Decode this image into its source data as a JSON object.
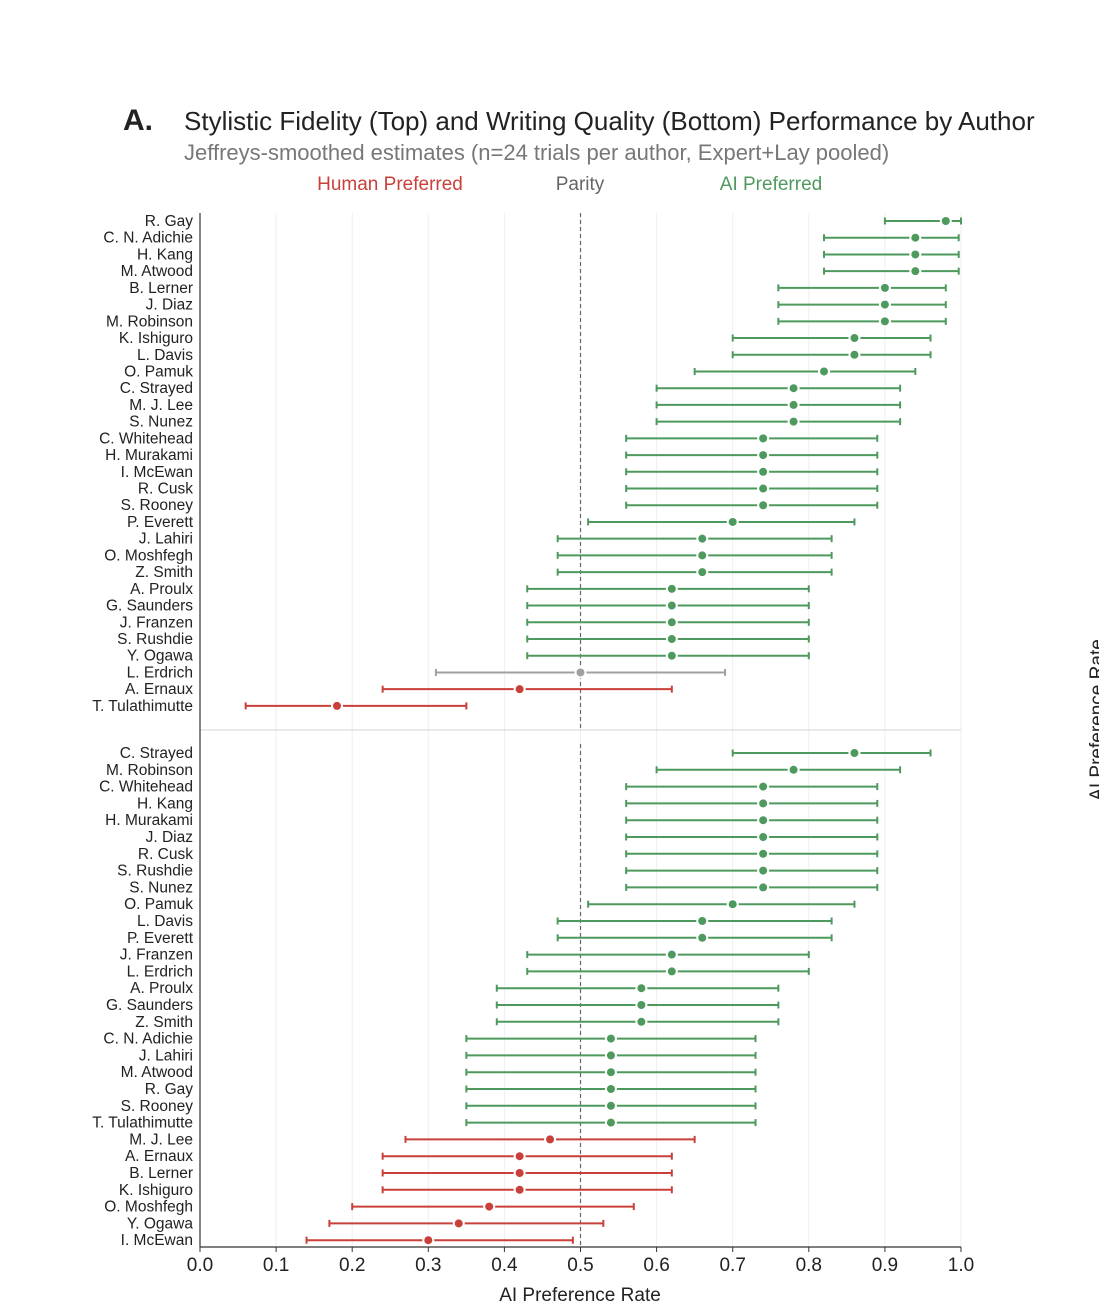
{
  "chart_data": {
    "type": "forest",
    "panel_letter": "A.",
    "title": "Stylistic Fidelity (Top) and Writing Quality (Bottom) Performance by Author",
    "subtitle": "Jeffreys-smoothed estimates (n=24 trials per author, Expert+Lay pooled)",
    "legend": {
      "human": "Human Preferred",
      "parity": "Parity",
      "ai": "AI Preferred"
    },
    "xlabel": "AI Preference Rate",
    "right_label": "AI Preference Rate",
    "xlim": [
      0.0,
      1.0
    ],
    "xticks": [
      "0.0",
      "0.1",
      "0.2",
      "0.3",
      "0.4",
      "0.5",
      "0.6",
      "0.7",
      "0.8",
      "0.9",
      "1.0"
    ],
    "parity_line": 0.5,
    "colors": {
      "ai": "#4e9a5e",
      "human": "#c9403a",
      "parity": "#a0a0a0",
      "human_text": "#c9403a",
      "ai_text": "#4e9a5e",
      "parity_text": "#666666"
    },
    "panels": [
      {
        "name": "Stylistic Fidelity",
        "rows": [
          {
            "author": "R. Gay",
            "value": 0.98,
            "lo": 0.9,
            "hi": 1.0
          },
          {
            "author": "C. N. Adichie",
            "value": 0.94,
            "lo": 0.82,
            "hi": 0.997
          },
          {
            "author": "H. Kang",
            "value": 0.94,
            "lo": 0.82,
            "hi": 0.997
          },
          {
            "author": "M. Atwood",
            "value": 0.94,
            "lo": 0.82,
            "hi": 0.997
          },
          {
            "author": "B. Lerner",
            "value": 0.9,
            "lo": 0.76,
            "hi": 0.98
          },
          {
            "author": "J. Diaz",
            "value": 0.9,
            "lo": 0.76,
            "hi": 0.98
          },
          {
            "author": "M. Robinson",
            "value": 0.9,
            "lo": 0.76,
            "hi": 0.98
          },
          {
            "author": "K. Ishiguro",
            "value": 0.86,
            "lo": 0.7,
            "hi": 0.96
          },
          {
            "author": "L. Davis",
            "value": 0.86,
            "lo": 0.7,
            "hi": 0.96
          },
          {
            "author": "O. Pamuk",
            "value": 0.82,
            "lo": 0.65,
            "hi": 0.94
          },
          {
            "author": "C. Strayed",
            "value": 0.78,
            "lo": 0.6,
            "hi": 0.92
          },
          {
            "author": "M. J. Lee",
            "value": 0.78,
            "lo": 0.6,
            "hi": 0.92
          },
          {
            "author": "S. Nunez",
            "value": 0.78,
            "lo": 0.6,
            "hi": 0.92
          },
          {
            "author": "C. Whitehead",
            "value": 0.74,
            "lo": 0.56,
            "hi": 0.89
          },
          {
            "author": "H. Murakami",
            "value": 0.74,
            "lo": 0.56,
            "hi": 0.89
          },
          {
            "author": "I. McEwan",
            "value": 0.74,
            "lo": 0.56,
            "hi": 0.89
          },
          {
            "author": "R. Cusk",
            "value": 0.74,
            "lo": 0.56,
            "hi": 0.89
          },
          {
            "author": "S. Rooney",
            "value": 0.74,
            "lo": 0.56,
            "hi": 0.89
          },
          {
            "author": "P. Everett",
            "value": 0.7,
            "lo": 0.51,
            "hi": 0.86
          },
          {
            "author": "J. Lahiri",
            "value": 0.66,
            "lo": 0.47,
            "hi": 0.83
          },
          {
            "author": "O. Moshfegh",
            "value": 0.66,
            "lo": 0.47,
            "hi": 0.83
          },
          {
            "author": "Z. Smith",
            "value": 0.66,
            "lo": 0.47,
            "hi": 0.83
          },
          {
            "author": "A. Proulx",
            "value": 0.62,
            "lo": 0.43,
            "hi": 0.8
          },
          {
            "author": "G. Saunders",
            "value": 0.62,
            "lo": 0.43,
            "hi": 0.8
          },
          {
            "author": "J. Franzen",
            "value": 0.62,
            "lo": 0.43,
            "hi": 0.8
          },
          {
            "author": "S. Rushdie",
            "value": 0.62,
            "lo": 0.43,
            "hi": 0.8
          },
          {
            "author": "Y. Ogawa",
            "value": 0.62,
            "lo": 0.43,
            "hi": 0.8
          },
          {
            "author": "L. Erdrich",
            "value": 0.5,
            "lo": 0.31,
            "hi": 0.69
          },
          {
            "author": "A. Ernaux",
            "value": 0.42,
            "lo": 0.24,
            "hi": 0.62
          },
          {
            "author": "T. Tulathimutte",
            "value": 0.18,
            "lo": 0.06,
            "hi": 0.35
          }
        ]
      },
      {
        "name": "Writing Quality",
        "rows": [
          {
            "author": "C. Strayed",
            "value": 0.86,
            "lo": 0.7,
            "hi": 0.96
          },
          {
            "author": "M. Robinson",
            "value": 0.78,
            "lo": 0.6,
            "hi": 0.92
          },
          {
            "author": "C. Whitehead",
            "value": 0.74,
            "lo": 0.56,
            "hi": 0.89
          },
          {
            "author": "H. Kang",
            "value": 0.74,
            "lo": 0.56,
            "hi": 0.89
          },
          {
            "author": "H. Murakami",
            "value": 0.74,
            "lo": 0.56,
            "hi": 0.89
          },
          {
            "author": "J. Diaz",
            "value": 0.74,
            "lo": 0.56,
            "hi": 0.89
          },
          {
            "author": "R. Cusk",
            "value": 0.74,
            "lo": 0.56,
            "hi": 0.89
          },
          {
            "author": "S. Rushdie",
            "value": 0.74,
            "lo": 0.56,
            "hi": 0.89
          },
          {
            "author": "S. Nunez",
            "value": 0.74,
            "lo": 0.56,
            "hi": 0.89
          },
          {
            "author": "O. Pamuk",
            "value": 0.7,
            "lo": 0.51,
            "hi": 0.86
          },
          {
            "author": "L. Davis",
            "value": 0.66,
            "lo": 0.47,
            "hi": 0.83
          },
          {
            "author": "P. Everett",
            "value": 0.66,
            "lo": 0.47,
            "hi": 0.83
          },
          {
            "author": "J. Franzen",
            "value": 0.62,
            "lo": 0.43,
            "hi": 0.8
          },
          {
            "author": "L. Erdrich",
            "value": 0.62,
            "lo": 0.43,
            "hi": 0.8
          },
          {
            "author": "A. Proulx",
            "value": 0.58,
            "lo": 0.39,
            "hi": 0.76
          },
          {
            "author": "G. Saunders",
            "value": 0.58,
            "lo": 0.39,
            "hi": 0.76
          },
          {
            "author": "Z. Smith",
            "value": 0.58,
            "lo": 0.39,
            "hi": 0.76
          },
          {
            "author": "C. N. Adichie",
            "value": 0.54,
            "lo": 0.35,
            "hi": 0.73
          },
          {
            "author": "J. Lahiri",
            "value": 0.54,
            "lo": 0.35,
            "hi": 0.73
          },
          {
            "author": "M. Atwood",
            "value": 0.54,
            "lo": 0.35,
            "hi": 0.73
          },
          {
            "author": "R. Gay",
            "value": 0.54,
            "lo": 0.35,
            "hi": 0.73
          },
          {
            "author": "S. Rooney",
            "value": 0.54,
            "lo": 0.35,
            "hi": 0.73
          },
          {
            "author": "T. Tulathimutte",
            "value": 0.54,
            "lo": 0.35,
            "hi": 0.73
          },
          {
            "author": "M. J. Lee",
            "value": 0.46,
            "lo": 0.27,
            "hi": 0.65
          },
          {
            "author": "A. Ernaux",
            "value": 0.42,
            "lo": 0.24,
            "hi": 0.62
          },
          {
            "author": "B. Lerner",
            "value": 0.42,
            "lo": 0.24,
            "hi": 0.62
          },
          {
            "author": "K. Ishiguro",
            "value": 0.42,
            "lo": 0.24,
            "hi": 0.62
          },
          {
            "author": "O. Moshfegh",
            "value": 0.38,
            "lo": 0.2,
            "hi": 0.57
          },
          {
            "author": "Y. Ogawa",
            "value": 0.34,
            "lo": 0.17,
            "hi": 0.53
          },
          {
            "author": "I. McEwan",
            "value": 0.3,
            "lo": 0.14,
            "hi": 0.49
          }
        ]
      }
    ]
  }
}
